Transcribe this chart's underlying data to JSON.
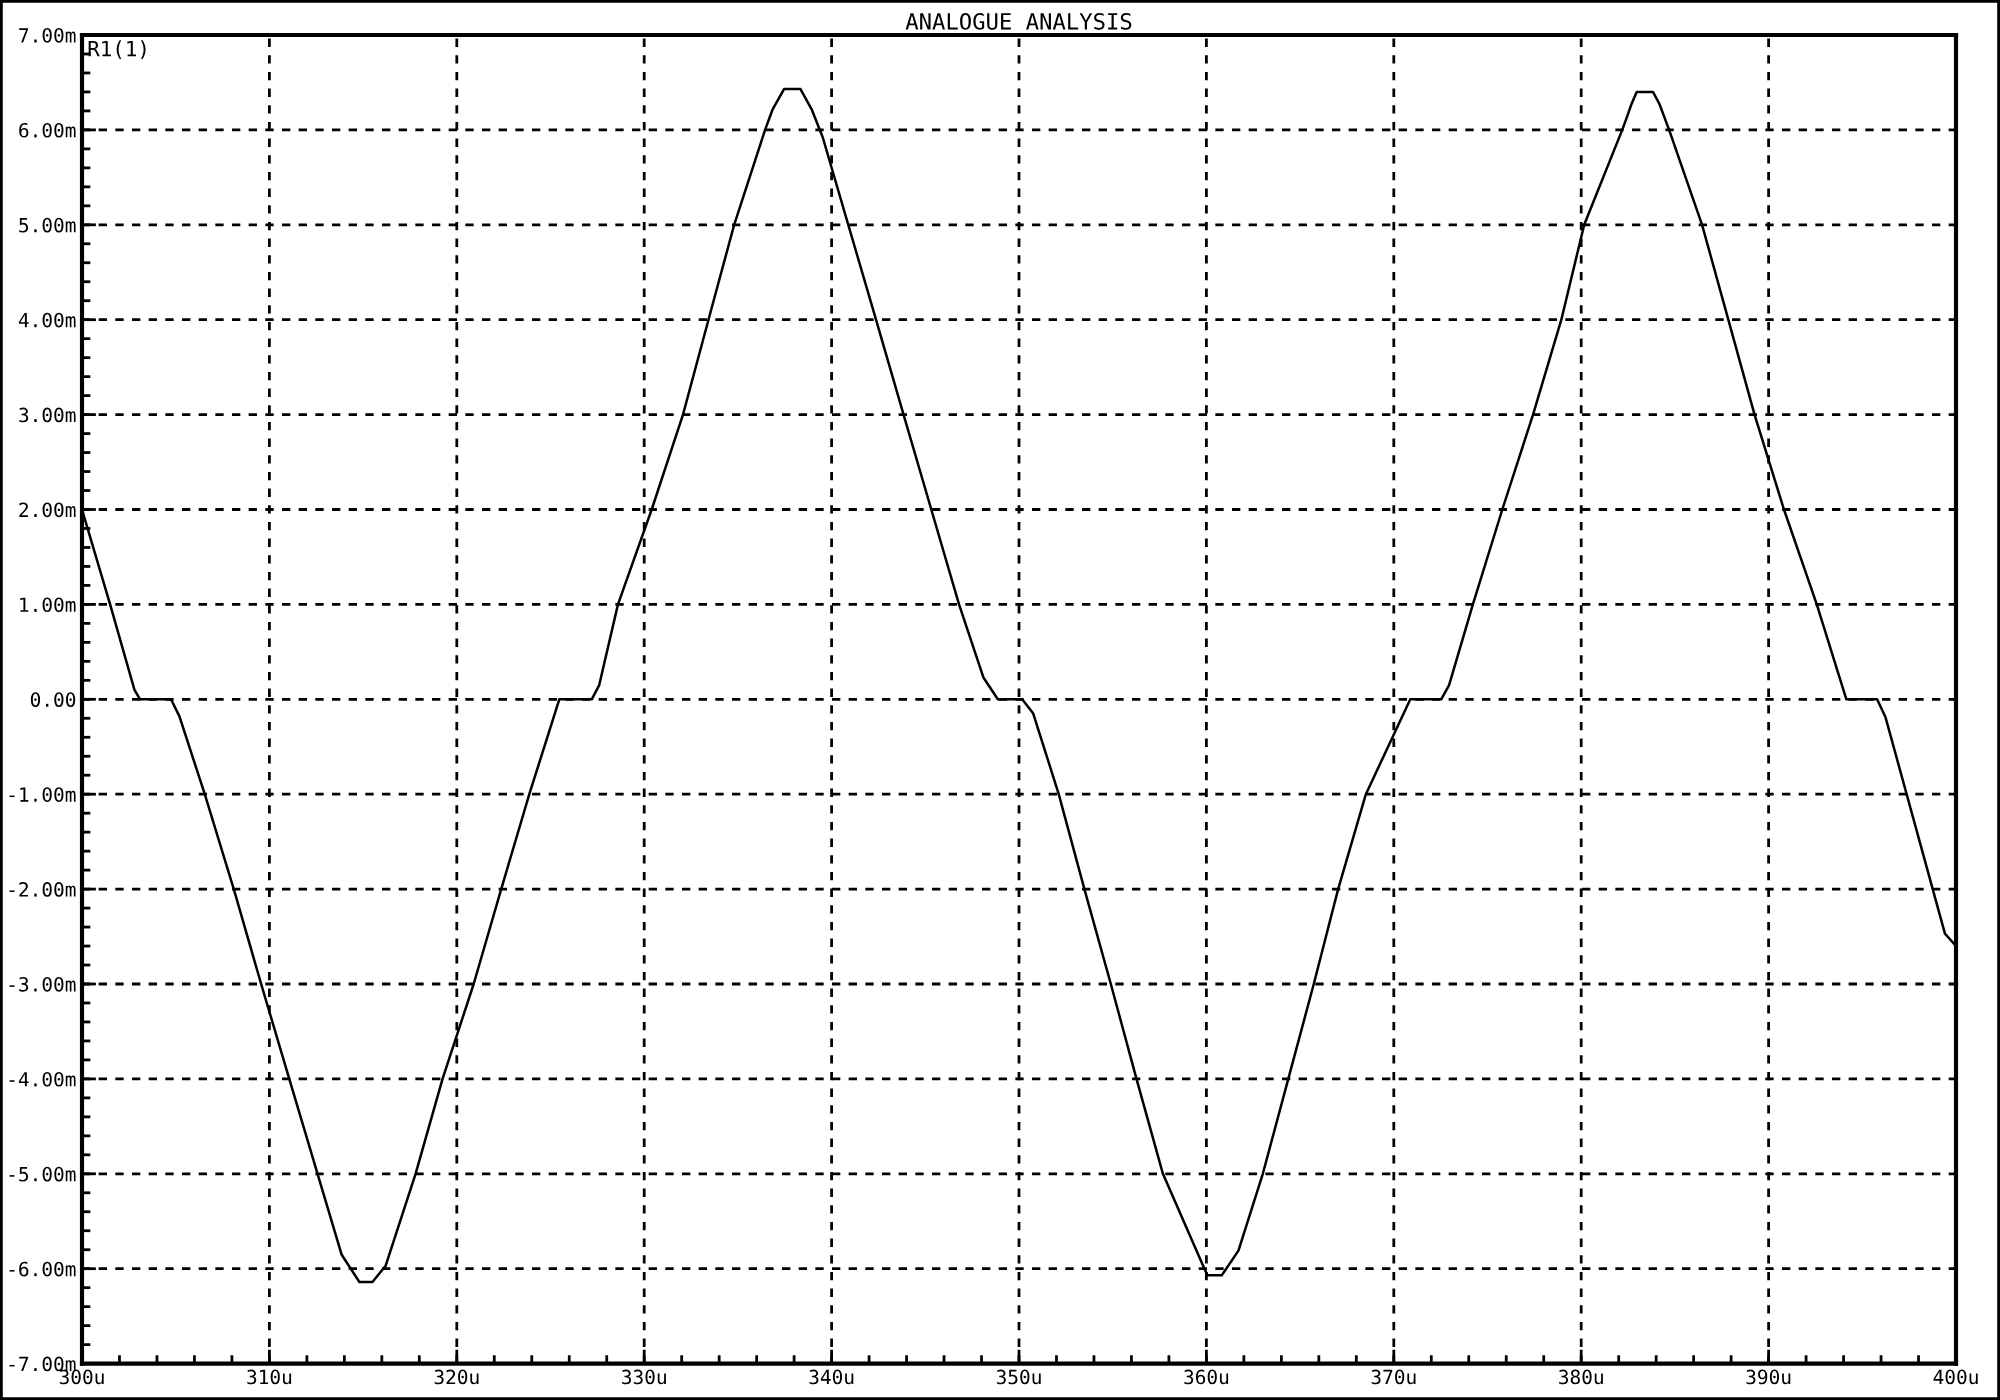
{
  "chart_data": {
    "type": "line",
    "title": "ANALOGUE ANALYSIS",
    "x": [
      300.0,
      301.5,
      302.8,
      303.1,
      304.75,
      305.2,
      306.55,
      308.1,
      309.56,
      311.06,
      312.57,
      313.85,
      314.8,
      315.5,
      316.2,
      317.8,
      319.24,
      320.9,
      322.37,
      323.87,
      325.47,
      327.2,
      327.6,
      328.6,
      330.4,
      332.07,
      333.43,
      334.8,
      336.45,
      336.86,
      337.46,
      338.34,
      338.93,
      339.53,
      340.89,
      342.37,
      343.84,
      345.32,
      346.8,
      348.1,
      348.87,
      350.17,
      350.76,
      352.12,
      353.49,
      354.9,
      356.27,
      357.68,
      359.34,
      360.05,
      360.82,
      361.71,
      363.01,
      364.37,
      365.73,
      367.03,
      368.51,
      370.88,
      372.53,
      372.95,
      374.22,
      375.79,
      377.43,
      378.94,
      380.16,
      382.19,
      382.43,
      382.68,
      382.96,
      383.83,
      384.18,
      384.71,
      386.45,
      387.85,
      389.25,
      390.82,
      392.57,
      394.15,
      395.79,
      396.24,
      399.41,
      400.0
    ],
    "series": [
      {
        "name": "R1(1)",
        "color": "#000000",
        "values": [
          2.0,
          1.0,
          0.1,
          0.0,
          0.0,
          -0.18,
          -1.0,
          -2.0,
          -3.0,
          -4.0,
          -5.0,
          -5.85,
          -6.14,
          -6.14,
          -5.97,
          -5.0,
          -4.0,
          -3.0,
          -2.0,
          -1.0,
          0.0,
          0.0,
          0.15,
          1.0,
          2.0,
          3.0,
          4.0,
          5.0,
          6.0,
          6.22,
          6.43,
          6.43,
          6.22,
          5.92,
          5.0,
          4.0,
          3.0,
          2.0,
          1.0,
          0.23,
          0.0,
          0.0,
          -0.15,
          -1.0,
          -2.0,
          -3.0,
          -4.0,
          -5.0,
          -5.75,
          -6.07,
          -6.07,
          -5.81,
          -5.0,
          -4.0,
          -3.0,
          -2.0,
          -1.0,
          0.0,
          0.0,
          0.15,
          1.0,
          2.0,
          3.0,
          4.0,
          5.0,
          6.0,
          6.13,
          6.27,
          6.4,
          6.4,
          6.27,
          5.99,
          5.0,
          4.0,
          3.0,
          2.0,
          1.0,
          0.0,
          0.0,
          -0.19,
          -2.47,
          -2.6
        ]
      }
    ],
    "xlim": [
      300,
      400
    ],
    "xticks": [
      {
        "value": 300,
        "label": "300u"
      },
      {
        "value": 310,
        "label": "310u"
      },
      {
        "value": 320,
        "label": "320u"
      },
      {
        "value": 330,
        "label": "330u"
      },
      {
        "value": 340,
        "label": "340u"
      },
      {
        "value": 350,
        "label": "350u"
      },
      {
        "value": 360,
        "label": "360u"
      },
      {
        "value": 370,
        "label": "370u"
      },
      {
        "value": 380,
        "label": "380u"
      },
      {
        "value": 390,
        "label": "390u"
      },
      {
        "value": 400,
        "label": "400u"
      }
    ],
    "ylim": [
      -7,
      7
    ],
    "yticks": [
      {
        "value": -7,
        "label": "-7.00m"
      },
      {
        "value": -6,
        "label": "-6.00m"
      },
      {
        "value": -5,
        "label": "-5.00m"
      },
      {
        "value": -4,
        "label": "-4.00m"
      },
      {
        "value": -3,
        "label": "-3.00m"
      },
      {
        "value": -2,
        "label": "-2.00m"
      },
      {
        "value": -1,
        "label": "-1.00m"
      },
      {
        "value": 0,
        "label": "0.00"
      },
      {
        "value": 1,
        "label": "1.00m"
      },
      {
        "value": 2,
        "label": "2.00m"
      },
      {
        "value": 3,
        "label": "3.00m"
      },
      {
        "value": 4,
        "label": "4.00m"
      },
      {
        "value": 5,
        "label": "5.00m"
      },
      {
        "value": 6,
        "label": "6.00m"
      },
      {
        "value": 7,
        "label": "7.00m"
      }
    ],
    "grid": true,
    "legend": "top left"
  }
}
